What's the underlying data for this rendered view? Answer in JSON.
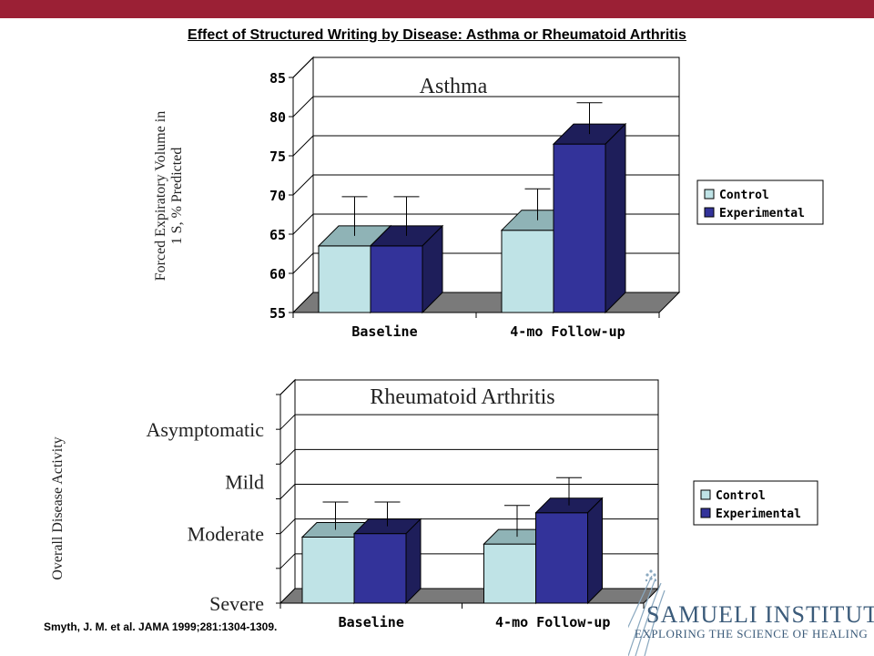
{
  "slide": {
    "title": "Effect of Structured Writing by Disease: Asthma or Rheumatoid Arthritis",
    "citation": "Smyth, J. M. et al. JAMA 1999;281:1304-1309.",
    "accent_color": "#9b2035"
  },
  "logo": {
    "name": "SAMUELI INSTITUTE",
    "tagline": "EXPLORING THE SCIENCE OF HEALING",
    "color": "#3b5b7a"
  },
  "chart_data": [
    {
      "type": "bar",
      "title": "Asthma",
      "ylabel_lines": [
        "Forced Expiratory Volume in",
        "1 S, % Predicted"
      ],
      "xlabel": "",
      "categories": [
        "Baseline",
        "4-mo Follow-up"
      ],
      "ylim": [
        55,
        85
      ],
      "yticks": [
        55,
        60,
        65,
        70,
        75,
        80,
        85
      ],
      "grid": true,
      "legend": "right",
      "series": [
        {
          "name": "Control",
          "values": [
            63.5,
            65.5
          ],
          "error_upper": [
            68.5,
            69.5
          ],
          "color": "#bfe3e6",
          "side_color": "#8fb3b6"
        },
        {
          "name": "Experimental",
          "values": [
            63.5,
            76.5
          ],
          "error_upper": [
            68.5,
            80.5
          ],
          "color": "#33339a",
          "side_color": "#1e1e5a"
        }
      ]
    },
    {
      "type": "bar",
      "title": "Rheumatoid Arthritis",
      "ylabel": "Overall Disease Activity",
      "xlabel": "",
      "categories": [
        "Baseline",
        "4-mo Follow-up"
      ],
      "ylim": [
        0,
        6
      ],
      "ytick_labels": [
        {
          "label": "Severe",
          "value": 0
        },
        {
          "label": "Moderate",
          "value": 2
        },
        {
          "label": "Mild",
          "value": 3.5
        },
        {
          "label": "Asymptomatic",
          "value": 5
        }
      ],
      "grid": true,
      "legend": "right",
      "series": [
        {
          "name": "Control",
          "values": [
            1.9,
            1.7
          ],
          "error_upper": [
            2.7,
            2.6
          ],
          "color": "#bfe3e6",
          "side_color": "#8fb3b6"
        },
        {
          "name": "Experimental",
          "values": [
            2.0,
            2.6
          ],
          "error_upper": [
            2.7,
            3.4
          ],
          "color": "#33339a",
          "side_color": "#1e1e5a"
        }
      ]
    }
  ]
}
